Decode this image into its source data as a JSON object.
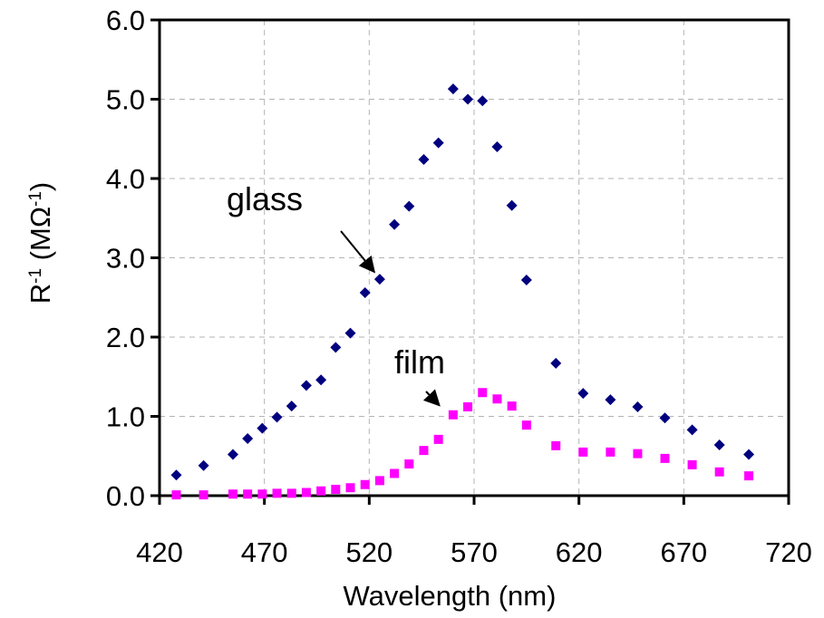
{
  "chart_data": {
    "type": "scatter",
    "title": "",
    "xlabel": "Wavelength (nm)",
    "ylabel": {
      "main": "R",
      "sup1": "-1",
      "mid": " (MΩ",
      "sup2": "-1",
      "end": ")"
    },
    "xlim": [
      420,
      720
    ],
    "ylim": [
      0,
      6
    ],
    "xticks": [
      420,
      470,
      520,
      570,
      620,
      670,
      720
    ],
    "xtick_labels": [
      "420",
      "470",
      "520",
      "570",
      "620",
      "670",
      "720"
    ],
    "yticks": [
      0,
      1,
      2,
      3,
      4,
      5,
      6
    ],
    "ytick_labels": [
      "0.0",
      "1.0",
      "2.0",
      "3.0",
      "4.0",
      "5.0",
      "6.0"
    ],
    "grid": true,
    "series": [
      {
        "name": "glass",
        "color": "#00007f",
        "marker": "diamond",
        "x": [
          428,
          441,
          455,
          462,
          469,
          476,
          483,
          490,
          497,
          504,
          511,
          518,
          525,
          532,
          539,
          546,
          553,
          560,
          567,
          574,
          581,
          588,
          595,
          609,
          622,
          635,
          648,
          661,
          674,
          687,
          701
        ],
        "y": [
          0.26,
          0.38,
          0.52,
          0.72,
          0.85,
          0.99,
          1.13,
          1.39,
          1.46,
          1.87,
          2.05,
          2.56,
          2.73,
          3.42,
          3.65,
          4.24,
          4.45,
          5.13,
          5.0,
          4.98,
          4.4,
          3.66,
          2.72,
          1.67,
          1.29,
          1.21,
          1.12,
          0.98,
          0.83,
          0.64,
          0.52
        ]
      },
      {
        "name": "film",
        "color": "#ff00ff",
        "marker": "square",
        "x": [
          428,
          441,
          455,
          462,
          469,
          476,
          483,
          490,
          497,
          504,
          511,
          518,
          525,
          532,
          539,
          546,
          553,
          560,
          567,
          574,
          581,
          588,
          595,
          609,
          622,
          635,
          648,
          661,
          674,
          687,
          701
        ],
        "y": [
          0.01,
          0.01,
          0.02,
          0.02,
          0.02,
          0.03,
          0.03,
          0.04,
          0.06,
          0.08,
          0.1,
          0.14,
          0.19,
          0.28,
          0.4,
          0.57,
          0.71,
          1.02,
          1.12,
          1.3,
          1.22,
          1.13,
          0.89,
          0.63,
          0.55,
          0.55,
          0.53,
          0.47,
          0.39,
          0.3,
          0.25
        ]
      }
    ],
    "annotations": [
      {
        "text": "glass",
        "target_x": 525,
        "target_y": 2.73
      },
      {
        "text": "film",
        "target_x": 556,
        "target_y": 1.07
      }
    ]
  }
}
